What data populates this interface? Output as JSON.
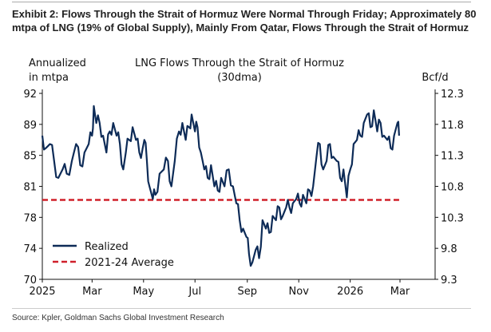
{
  "exhibit_title": "Exhibit 2: Flows Through the Strait of Hormuz Were Normal Through Friday; Approximately 80 mtpa of LNG (19% of Global Supply), Mainly From Qatar, Flows Through the Strait of Hormuz",
  "source": "Source: Kpler, Goldman Sachs Global Investment Research",
  "colors": {
    "realized": "#0d2b57",
    "average": "#d0202a"
  },
  "chart_data": {
    "type": "line",
    "title": "LNG Flows Through the Strait of Hormuz",
    "subtitle": "(30dma)",
    "ylabel_left_line1": "Annualized",
    "ylabel_left_line2": "in mtpa",
    "ylabel_right": "Bcf/d",
    "ylim": [
      70,
      92
    ],
    "ylim_right": [
      9.3,
      12.3
    ],
    "yticks_left": [
      "70",
      "74",
      "78",
      "81",
      "85",
      "89",
      "92"
    ],
    "yticks_right": [
      "9.3",
      "9.8",
      "10.3",
      "10.8",
      "11.3",
      "11.8",
      "12.3"
    ],
    "xlim_days": [
      0,
      424
    ],
    "xticks": [
      {
        "label": "2025",
        "day": 0
      },
      {
        "label": "Mar",
        "day": 59
      },
      {
        "label": "May",
        "day": 120
      },
      {
        "label": "Jul",
        "day": 181
      },
      {
        "label": "Sep",
        "day": 243
      },
      {
        "label": "Nov",
        "day": 304
      },
      {
        "label": "2026",
        "day": 365
      },
      {
        "label": "Mar",
        "day": 424
      }
    ],
    "legend": {
      "position": "bottom-left",
      "realized": "Realized",
      "average": "2021-24 Average"
    },
    "average_value": 79.4,
    "average_range_days": [
      0,
      423
    ],
    "series": [
      {
        "name": "Realized",
        "days": [
          0,
          4,
          9,
          14,
          19,
          24,
          29,
          35,
          40,
          45,
          50,
          55,
          59,
          61,
          64,
          68,
          72,
          76,
          80,
          84,
          88,
          92,
          96,
          99,
          103,
          107,
          111,
          115,
          119,
          121,
          124,
          127,
          131,
          134,
          139,
          144,
          149,
          153,
          157,
          162,
          166,
          170,
          174,
          177,
          181,
          184,
          188,
          192,
          196,
          200,
          204,
          208,
          212,
          216,
          221,
          226,
          230,
          234,
          238,
          242,
          245,
          249,
          253,
          257,
          261,
          265,
          269,
          273,
          277,
          281,
          285,
          289,
          293,
          297,
          301,
          305,
          309,
          313,
          317,
          321,
          325,
          329,
          333,
          337,
          341,
          345,
          349,
          353,
          357,
          361,
          365,
          369,
          373,
          377,
          381,
          385,
          389,
          393,
          397,
          401,
          405,
          409,
          413,
          417,
          421,
          423
        ],
        "values": [
          87,
          85.5,
          86,
          84,
          82,
          83,
          82.5,
          84,
          86,
          83.5,
          85,
          86,
          87,
          90.5,
          88.5,
          88.5,
          87,
          85,
          87.5,
          88.5,
          87,
          86,
          83,
          85,
          86.5,
          88,
          86.5,
          85,
          85.5,
          86.5,
          84,
          81,
          79.5,
          80,
          82.5,
          83,
          84,
          81,
          84,
          87.5,
          88.5,
          86.5,
          88,
          89.5,
          87.5,
          88,
          85,
          83,
          82,
          83.5,
          81,
          80.5,
          82,
          81,
          83,
          81,
          79,
          77,
          76,
          75,
          73,
          72,
          73.5,
          72.5,
          77,
          76,
          75.5,
          77.5,
          77,
          78.5,
          77.5,
          78.5,
          78.5,
          79,
          79.5,
          79,
          80,
          79,
          80.5,
          81,
          84.5,
          86,
          83,
          84,
          86,
          84.5,
          84,
          82,
          83,
          79.7,
          83,
          86,
          86.5,
          87,
          88.5,
          89.5,
          88,
          90,
          87.5,
          88.5,
          87,
          86.5,
          85.5,
          87,
          88.5,
          87
        ]
      }
    ]
  }
}
